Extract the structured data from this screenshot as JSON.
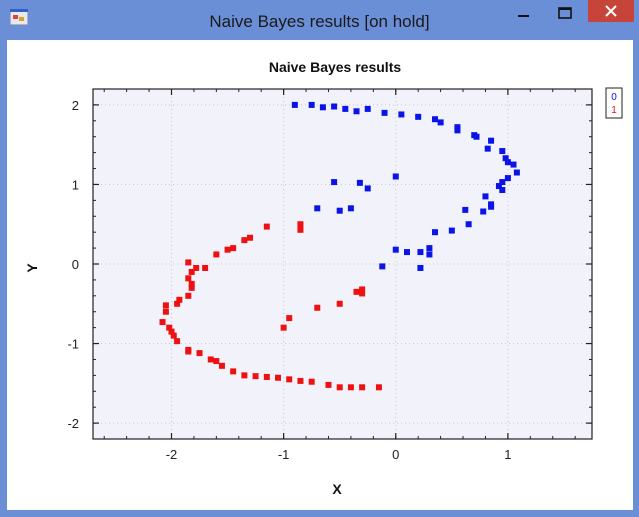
{
  "window": {
    "title": "Naive Bayes results [on hold]",
    "accent": "#6b8fd6",
    "icons": [
      "app-icon",
      "minimize-icon",
      "maximize-icon",
      "close-icon"
    ]
  },
  "chart_data": {
    "type": "scatter",
    "title": "Naive Bayes results",
    "xlabel": "X",
    "ylabel": "Y",
    "xlim": [
      -2.7,
      1.75
    ],
    "ylim": [
      -2.2,
      2.2
    ],
    "xticks": [
      -2,
      -1,
      0,
      1
    ],
    "xtick_labels": [
      "-2",
      "-1",
      "0",
      "1"
    ],
    "yticks": [
      -2,
      -1,
      0,
      1,
      2
    ],
    "ytick_labels": [
      "-2",
      "-1",
      "0",
      "1",
      "2"
    ],
    "grid": true,
    "legend_position": "top-right",
    "series": [
      {
        "name": "0",
        "color": "#0a14e6",
        "points": [
          [
            -0.9,
            2.0
          ],
          [
            -0.75,
            2.0
          ],
          [
            -0.65,
            1.97
          ],
          [
            -0.55,
            1.98
          ],
          [
            -0.45,
            1.95
          ],
          [
            -0.35,
            1.92
          ],
          [
            -0.25,
            1.95
          ],
          [
            -0.1,
            1.9
          ],
          [
            0.05,
            1.88
          ],
          [
            0.2,
            1.85
          ],
          [
            0.35,
            1.82
          ],
          [
            0.4,
            1.78
          ],
          [
            0.55,
            1.72
          ],
          [
            0.55,
            1.68
          ],
          [
            0.7,
            1.62
          ],
          [
            0.72,
            1.6
          ],
          [
            0.85,
            1.55
          ],
          [
            0.82,
            1.45
          ],
          [
            0.95,
            1.42
          ],
          [
            0.98,
            1.33
          ],
          [
            1.0,
            1.28
          ],
          [
            1.05,
            1.25
          ],
          [
            1.08,
            1.15
          ],
          [
            1.0,
            1.08
          ],
          [
            0.95,
            1.03
          ],
          [
            0.92,
            0.98
          ],
          [
            0.95,
            0.93
          ],
          [
            0.8,
            0.85
          ],
          [
            0.85,
            0.75
          ],
          [
            0.85,
            0.72
          ],
          [
            0.78,
            0.66
          ],
          [
            0.62,
            0.68
          ],
          [
            0.65,
            0.5
          ],
          [
            0.5,
            0.42
          ],
          [
            0.35,
            0.4
          ],
          [
            0.3,
            0.2
          ],
          [
            0.3,
            0.12
          ],
          [
            0.22,
            0.15
          ],
          [
            0.0,
            0.18
          ],
          [
            0.1,
            0.15
          ],
          [
            -0.12,
            -0.03
          ],
          [
            0.22,
            -0.05
          ],
          [
            0.0,
            1.1
          ],
          [
            -0.25,
            0.95
          ],
          [
            -0.32,
            1.02
          ],
          [
            -0.55,
            1.03
          ],
          [
            -0.4,
            0.7
          ],
          [
            -0.5,
            0.67
          ],
          [
            -0.7,
            0.7
          ]
        ]
      },
      {
        "name": "1",
        "color": "#ee1111",
        "points": [
          [
            -0.15,
            -1.55
          ],
          [
            -0.3,
            -1.55
          ],
          [
            -0.4,
            -1.55
          ],
          [
            -0.5,
            -1.55
          ],
          [
            -0.6,
            -1.52
          ],
          [
            -0.75,
            -1.48
          ],
          [
            -0.85,
            -1.47
          ],
          [
            -0.95,
            -1.45
          ],
          [
            -1.05,
            -1.43
          ],
          [
            -1.15,
            -1.42
          ],
          [
            -1.25,
            -1.41
          ],
          [
            -1.35,
            -1.4
          ],
          [
            -1.45,
            -1.35
          ],
          [
            -1.55,
            -1.28
          ],
          [
            -1.6,
            -1.22
          ],
          [
            -1.65,
            -1.2
          ],
          [
            -1.75,
            -1.12
          ],
          [
            -1.85,
            -1.08
          ],
          [
            -1.85,
            -1.1
          ],
          [
            -1.95,
            -0.97
          ],
          [
            -1.98,
            -0.9
          ],
          [
            -2.0,
            -0.85
          ],
          [
            -2.02,
            -0.8
          ],
          [
            -2.08,
            -0.73
          ],
          [
            -2.05,
            -0.6
          ],
          [
            -2.05,
            -0.52
          ],
          [
            -1.95,
            -0.5
          ],
          [
            -1.93,
            -0.45
          ],
          [
            -1.85,
            -0.4
          ],
          [
            -1.82,
            -0.3
          ],
          [
            -1.82,
            -0.25
          ],
          [
            -1.85,
            -0.18
          ],
          [
            -1.82,
            -0.1
          ],
          [
            -1.85,
            0.02
          ],
          [
            -1.78,
            -0.05
          ],
          [
            -1.7,
            -0.05
          ],
          [
            -1.6,
            0.12
          ],
          [
            -1.5,
            0.18
          ],
          [
            -1.45,
            0.2
          ],
          [
            -1.35,
            0.3
          ],
          [
            -1.3,
            0.33
          ],
          [
            -1.15,
            0.47
          ],
          [
            -0.85,
            0.5
          ],
          [
            -0.85,
            0.43
          ],
          [
            -0.5,
            -0.5
          ],
          [
            -0.7,
            -0.55
          ],
          [
            -1.0,
            -0.8
          ],
          [
            -0.95,
            -0.68
          ],
          [
            -0.35,
            -0.35
          ],
          [
            -0.3,
            -0.32
          ],
          [
            -0.3,
            -0.37
          ]
        ]
      }
    ]
  }
}
